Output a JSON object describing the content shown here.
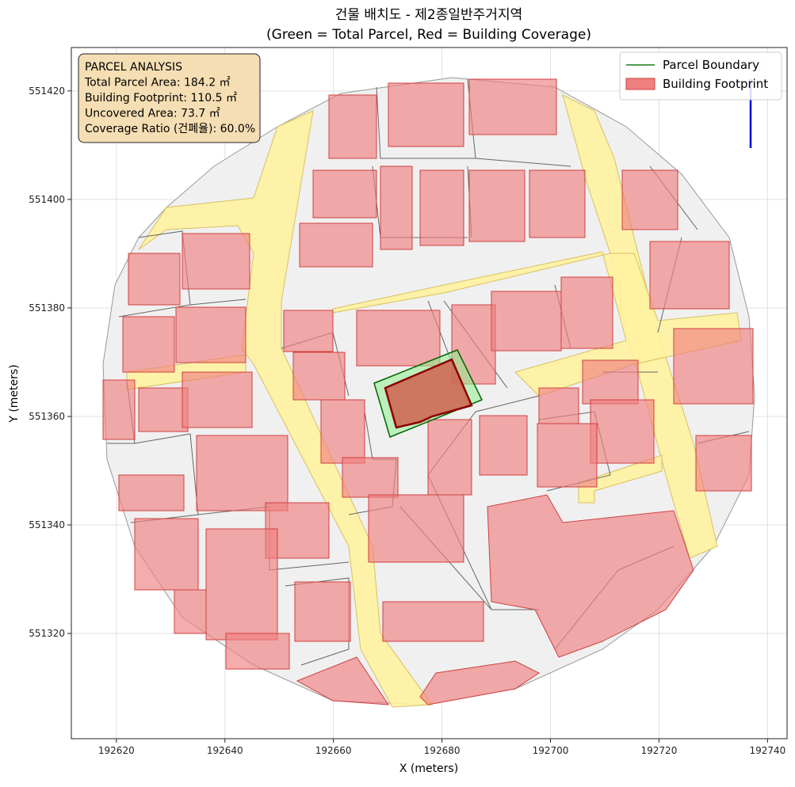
{
  "chart_data": {
    "type": "map",
    "title": "건물 배치도 - 제2종일반주거지역",
    "subtitle": "(Green = Total Parcel, Red = Building Coverage)",
    "xlabel": "X (meters)",
    "ylabel": "Y (meters)",
    "xlim": [
      192611.7,
      192743.6
    ],
    "xticks": [
      192620,
      192640,
      192660,
      192680,
      192700,
      192720,
      192740
    ],
    "ylim": [
      551300.6,
      551428.0
    ],
    "yticks": [
      551320,
      551340,
      551360,
      551380,
      551400,
      551420
    ],
    "grid": true,
    "legend": [
      {
        "name": "Parcel Boundary",
        "color": "#1a7a1a"
      },
      {
        "name": "Building Footprint",
        "color": "#f08080"
      }
    ],
    "annotation": [
      "PARCEL ANALYSIS",
      "Total Parcel Area: 184.2 ㎡",
      "Building Footprint: 110.5 ㎡",
      "Uncovered Area: 73.7 ㎡",
      "Coverage Ratio (건폐율): 60.0%"
    ]
  }
}
